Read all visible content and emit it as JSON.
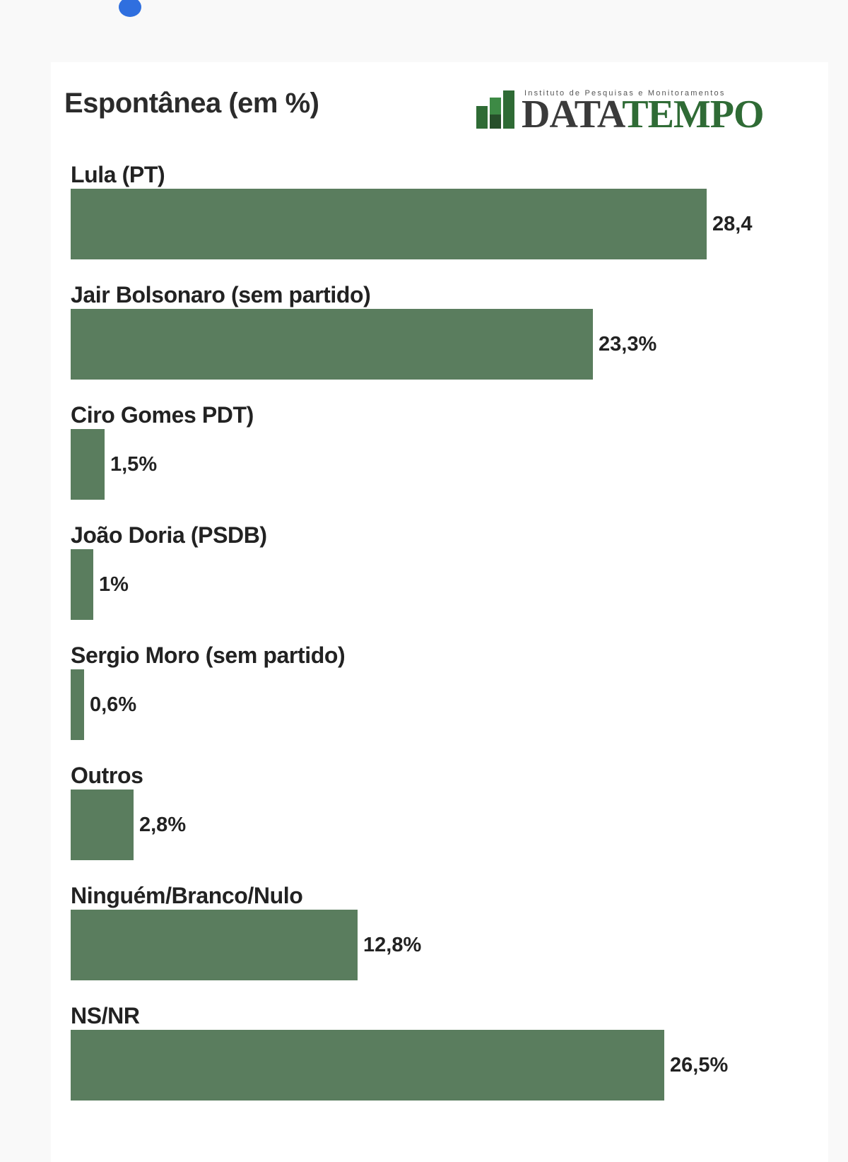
{
  "chart_data": {
    "type": "bar",
    "orientation": "horizontal",
    "title": "Espontânea (em %)",
    "logo": {
      "tagline": "Instituto de Pesquisas e Monitoramentos",
      "name_part1": "DATA",
      "name_part2": "TEMPO"
    },
    "categories": [
      "Lula (PT)",
      "Jair Bolsonaro (sem partido)",
      "Ciro Gomes PDT)",
      "João Doria (PSDB)",
      "Sergio Moro (sem partido)",
      "Outros",
      "Ninguém/Branco/Nulo",
      "NS/NR"
    ],
    "values": [
      28.4,
      23.3,
      1.5,
      1,
      0.6,
      2.8,
      12.8,
      26.5
    ],
    "value_labels": [
      "28,4",
      "23,3%",
      "1,5%",
      "1%",
      "0,6%",
      "2,8%",
      "12,8%",
      "26,5%"
    ],
    "xlim": [
      0,
      31.7
    ],
    "bar_color": "#5a7d5e",
    "grid": false,
    "legend": "none"
  }
}
